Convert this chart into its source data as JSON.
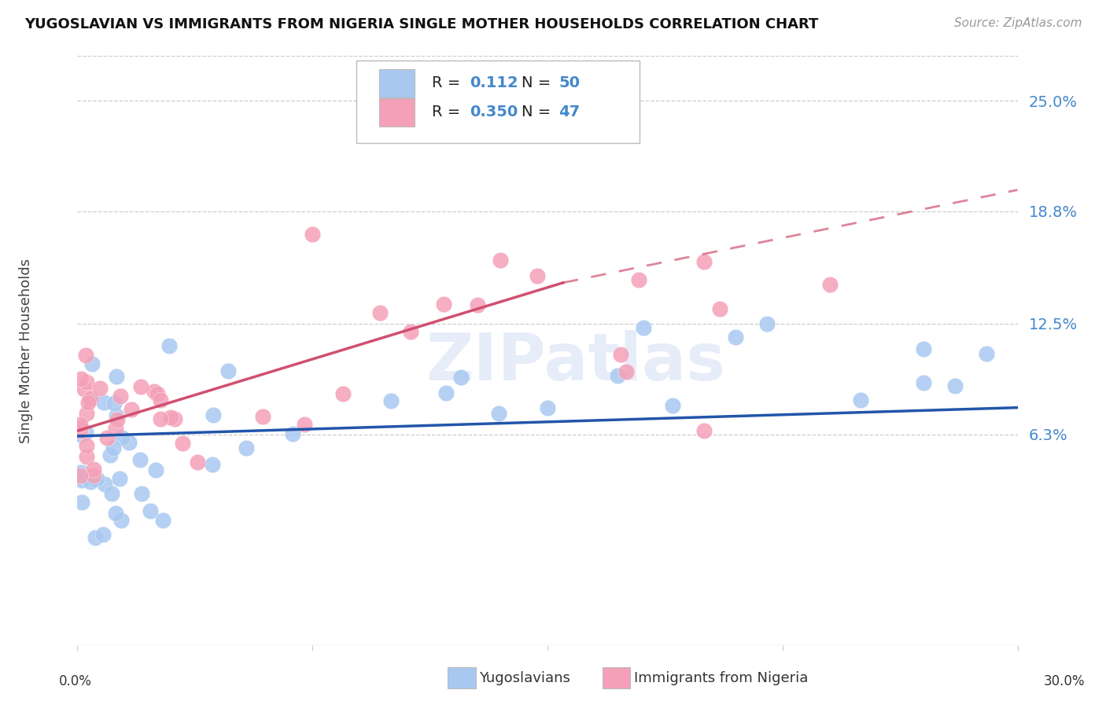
{
  "title": "YUGOSLAVIAN VS IMMIGRANTS FROM NIGERIA SINGLE MOTHER HOUSEHOLDS CORRELATION CHART",
  "source": "Source: ZipAtlas.com",
  "ylabel": "Single Mother Households",
  "xlim": [
    0.0,
    0.3
  ],
  "ylim": [
    -0.055,
    0.275
  ],
  "ytick_vals": [
    0.063,
    0.125,
    0.188,
    0.25
  ],
  "ytick_labels": [
    "6.3%",
    "12.5%",
    "18.8%",
    "25.0%"
  ],
  "xtick_vals": [
    0.0,
    0.075,
    0.15,
    0.225,
    0.3
  ],
  "watermark": "ZIPatlas",
  "blue_color": "#a8c8f0",
  "pink_color": "#f4a0b8",
  "blue_line_color": "#2255aa",
  "pink_line_color": "#d05070",
  "blue_legend_color": "#a8c8f0",
  "pink_legend_color": "#f4a0b8",
  "legend_R_blue": "0.112",
  "legend_N_blue": "50",
  "legend_R_pink": "0.350",
  "legend_N_pink": "47",
  "grid_color": "#cccccc",
  "background_color": "#ffffff",
  "blue_trend": [
    0.0,
    0.3,
    0.062,
    0.078
  ],
  "pink_trend_solid": [
    0.0,
    0.155,
    0.065,
    0.148
  ],
  "pink_trend_dashed": [
    0.155,
    0.3,
    0.148,
    0.2
  ]
}
